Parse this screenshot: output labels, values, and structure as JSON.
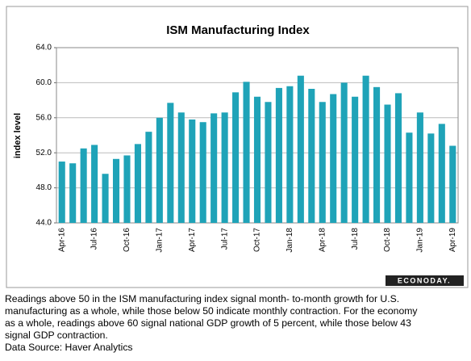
{
  "chart_data": {
    "type": "bar",
    "title": "ISM Manufacturing Index",
    "y_label": "index level",
    "categories": [
      "Apr-16",
      null,
      null,
      "Jul-16",
      null,
      null,
      "Oct-16",
      null,
      null,
      "Jan-17",
      null,
      null,
      "Apr-17",
      null,
      null,
      "Jul-17",
      null,
      null,
      "Oct-17",
      null,
      null,
      "Jan-18",
      null,
      null,
      "Apr-18",
      null,
      null,
      "Jul-18",
      null,
      null,
      "Oct-18",
      null,
      null,
      "Jan-19",
      null,
      null,
      "Apr-19"
    ],
    "values": [
      51.0,
      50.8,
      52.5,
      52.9,
      49.6,
      51.3,
      51.7,
      53.0,
      54.4,
      56.0,
      57.7,
      56.6,
      55.8,
      55.5,
      56.5,
      56.6,
      58.9,
      60.1,
      58.4,
      57.8,
      59.4,
      59.6,
      60.8,
      59.3,
      57.8,
      58.7,
      60.0,
      58.4,
      60.8,
      59.5,
      57.5,
      58.8,
      54.3,
      56.6,
      54.2,
      55.3,
      52.8
    ],
    "color": "#1fa3b8",
    "ylim": [
      44,
      64
    ],
    "yticks": [
      {
        "value": 44,
        "label": "44.0"
      },
      {
        "value": 48,
        "label": "48.0"
      },
      {
        "value": 52,
        "label": "52.0"
      },
      {
        "value": 56,
        "label": "56.0"
      },
      {
        "value": 60,
        "label": "60.0"
      },
      {
        "value": 64,
        "label": "64.0"
      }
    ],
    "grid": true
  },
  "logo": "ECONODAY.",
  "caption": {
    "lines": [
      "Readings above 50 in the ISM manufacturing index signal month- to-month growth for U.S.",
      "manufacturing as a whole, while those below 50 indicate monthly contraction. For the economy",
      "as a whole, readings above 60 signal national GDP growth of 5 percent, while those below 43",
      "signal GDP contraction."
    ],
    "source": "Data Source: Haver Analytics"
  }
}
